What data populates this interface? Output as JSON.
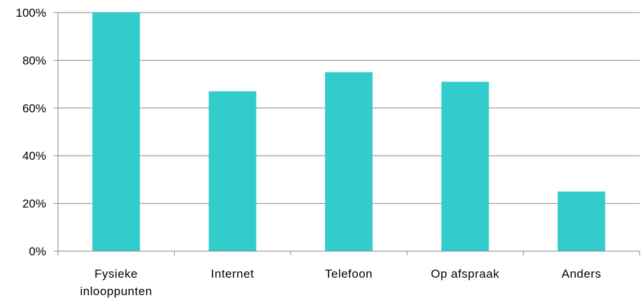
{
  "chart_data": {
    "type": "bar",
    "categories": [
      "Fysieke inlooppunten",
      "Internet",
      "Telefoon",
      "Op afspraak",
      "Anders"
    ],
    "category_lines": [
      [
        "Fysieke",
        "inlooppunten"
      ],
      [
        "Internet"
      ],
      [
        "Telefoon"
      ],
      [
        "Op afspraak"
      ],
      [
        "Anders"
      ]
    ],
    "values": [
      100,
      67,
      75,
      71,
      25
    ],
    "ylim": [
      0,
      100
    ],
    "yticks": [
      0,
      20,
      40,
      60,
      80,
      100
    ],
    "ytick_labels": [
      "0%",
      "20%",
      "40%",
      "60%",
      "80%",
      "100%"
    ],
    "grid": true,
    "legend": "none",
    "bar_color": "#33CCCC",
    "grid_color": "#868686"
  }
}
